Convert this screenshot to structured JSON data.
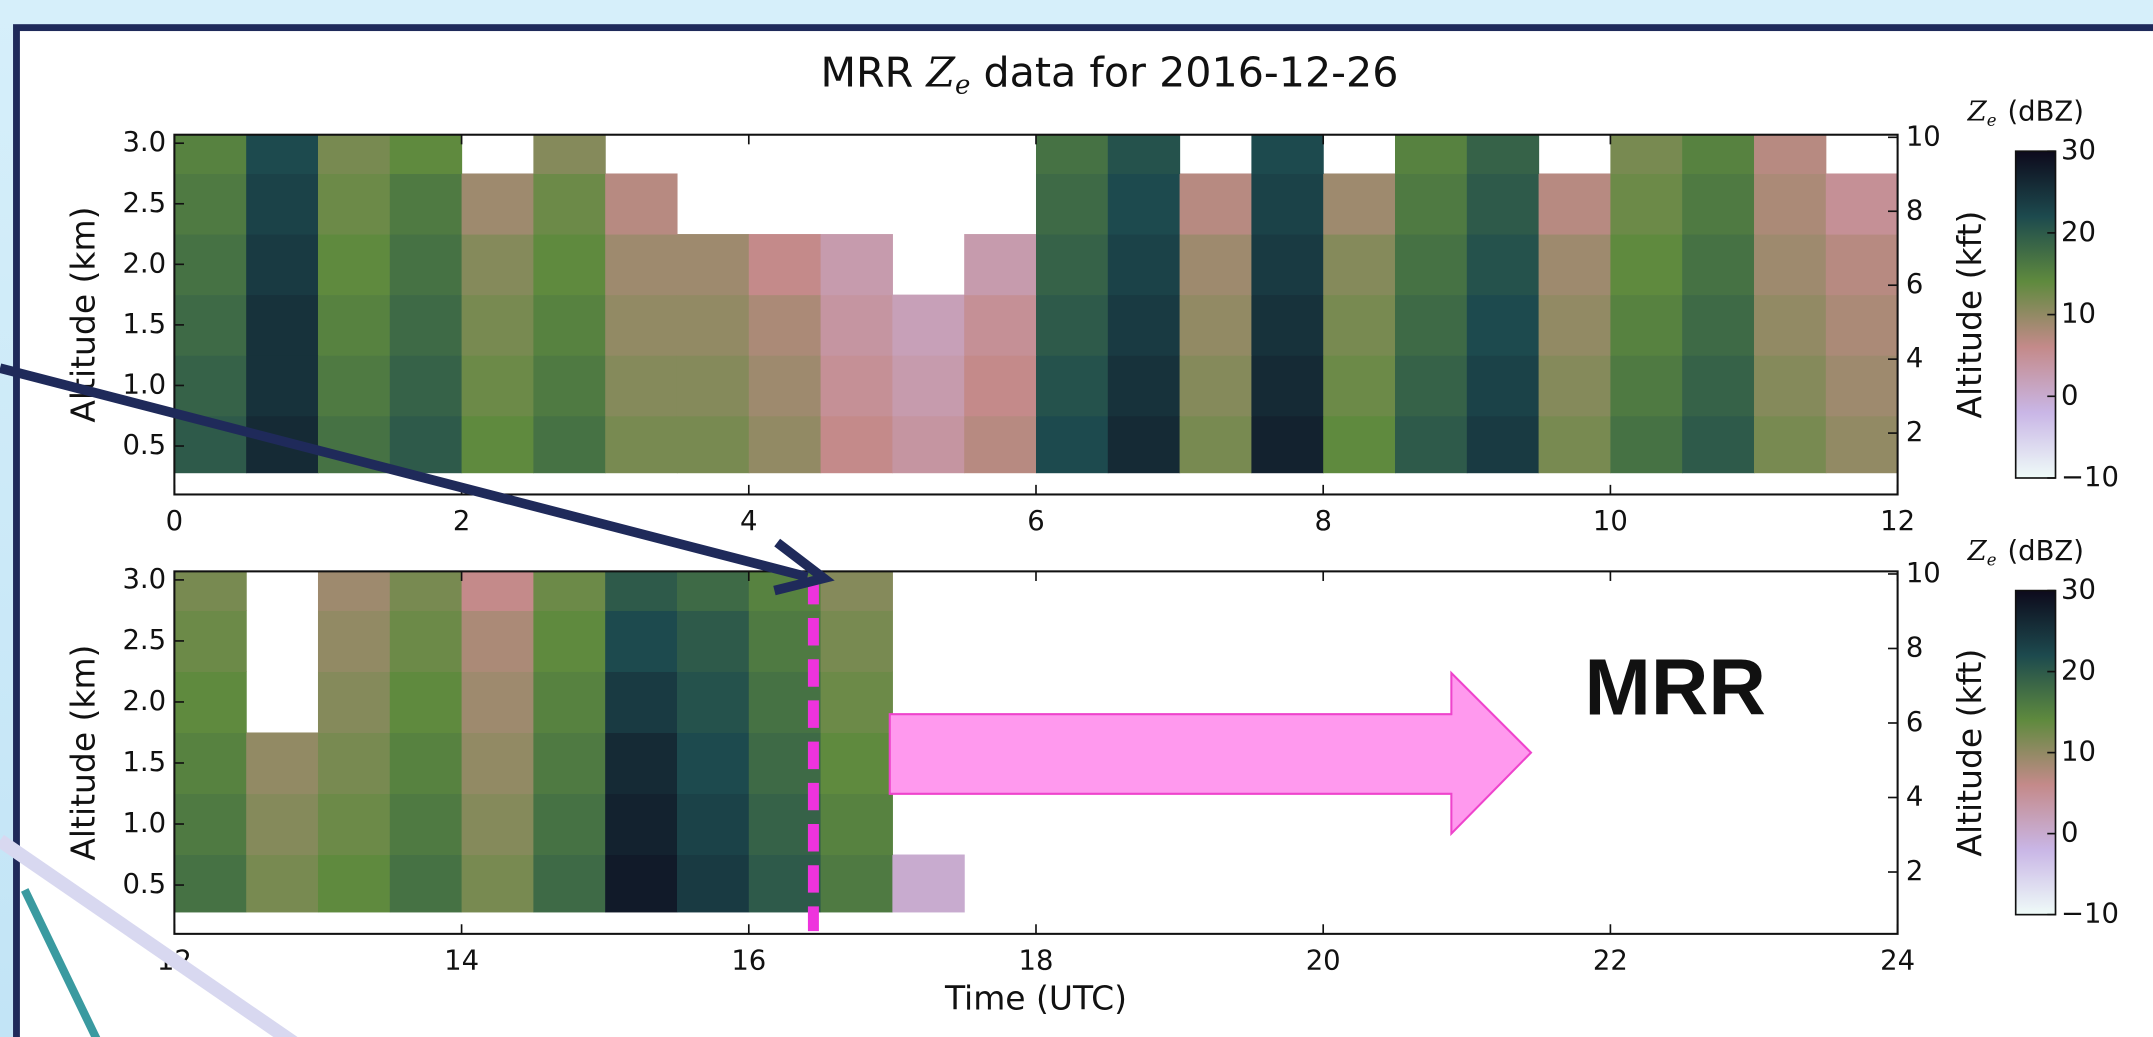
{
  "chart_data": [
    {
      "type": "heatmap",
      "title": {
        "prefix": "MRR",
        "symbol": "Z",
        "subscript": "e",
        "suffix": "data for 2016-12-26"
      },
      "ylabel": "Altitude (km)",
      "y2label": "Altitude (kft)",
      "xlim": [
        0,
        12
      ],
      "xticks": [
        0,
        2,
        4,
        6,
        8,
        10,
        12
      ],
      "ylim": [
        0.1,
        3.07
      ],
      "yticks": [
        0.5,
        {
          "value": 1.0,
          "label": "1.0"
        },
        1.5,
        {
          "value": 2.0,
          "label": "2.0"
        },
        2.5,
        {
          "value": 3.0,
          "label": "3.0"
        }
      ],
      "y2lim": [
        0.34,
        10.07
      ],
      "y2ticks": [
        2,
        4,
        6,
        8,
        10
      ],
      "x_edges": [
        0,
        0.5,
        1,
        1.5,
        2,
        2.5,
        3,
        3.5,
        4,
        4.5,
        5,
        5.5,
        6,
        6.5,
        7,
        7.5,
        8,
        8.5,
        9,
        9.5,
        10,
        10.5,
        11,
        11.5,
        12
      ],
      "y_edges": [
        0.28,
        0.75,
        1.25,
        1.75,
        2.25,
        2.75,
        3.07
      ],
      "z": [
        [
          20,
          26,
          17,
          20,
          14,
          17,
          12,
          12,
          10,
          6,
          4,
          7,
          22,
          26,
          12,
          27,
          14,
          20,
          24,
          12,
          17,
          20,
          12,
          10
        ],
        [
          19,
          25,
          16,
          19,
          13,
          16,
          11,
          11,
          9,
          5,
          3,
          6,
          21,
          25,
          11,
          26,
          13,
          19,
          23,
          11,
          16,
          19,
          11,
          9
        ],
        [
          18,
          25,
          15,
          18,
          12,
          15,
          10,
          10,
          8,
          4,
          2,
          5,
          20,
          24,
          10,
          25,
          12,
          18,
          22,
          10,
          15,
          18,
          10,
          8
        ],
        [
          17,
          24,
          14,
          17,
          11,
          14,
          9,
          9,
          6,
          3,
          null,
          3,
          19,
          23,
          9,
          24,
          11,
          17,
          21,
          9,
          14,
          17,
          9,
          7
        ],
        [
          16,
          23,
          13,
          16,
          9,
          13,
          7,
          null,
          null,
          null,
          null,
          null,
          18,
          22,
          7,
          23,
          9,
          16,
          20,
          7,
          13,
          16,
          8,
          5
        ],
        [
          15,
          22,
          12,
          14,
          null,
          11,
          null,
          null,
          null,
          null,
          null,
          null,
          17,
          21,
          null,
          22,
          null,
          15,
          19,
          null,
          12,
          15,
          7,
          null
        ]
      ],
      "colorbar": {
        "symbol": "Z",
        "subscript": "e",
        "unit": "(dBZ)",
        "clim": [
          -10,
          30
        ],
        "ticks": [
          {
            "value": -10,
            "label": "−10"
          },
          0,
          10,
          20,
          30
        ],
        "colormap": [
          "#effbf8",
          "#c9b6e6",
          "#c48a8a",
          "#5f8a3e",
          "#1d4a4e",
          "#0d0a1c"
        ]
      }
    },
    {
      "type": "heatmap",
      "xlabel": "Time (UTC)",
      "ylabel": "Altitude (km)",
      "y2label": "Altitude (kft)",
      "xlim": [
        12,
        24
      ],
      "xticks": [
        12,
        14,
        16,
        18,
        20,
        22,
        24
      ],
      "ylim": [
        0.1,
        3.07
      ],
      "yticks": [
        0.5,
        {
          "value": 1.0,
          "label": "1.0"
        },
        1.5,
        {
          "value": 2.0,
          "label": "2.0"
        },
        2.5,
        {
          "value": 3.0,
          "label": "3.0"
        }
      ],
      "y2lim": [
        0.34,
        10.07
      ],
      "y2ticks": [
        2,
        4,
        6,
        8,
        10
      ],
      "x_edges": [
        12,
        12.5,
        13,
        13.5,
        14,
        14.5,
        15,
        15.5,
        16,
        16.5,
        17,
        17.5,
        18,
        18.5,
        19,
        19.5,
        20,
        20.5,
        21,
        21.5,
        22,
        22.5,
        23,
        23.5,
        24
      ],
      "y_edges": [
        0.28,
        0.75,
        1.25,
        1.75,
        2.25,
        2.75,
        3.07
      ],
      "z": [
        [
          17,
          12,
          14,
          17,
          12,
          18,
          28,
          24,
          20,
          16,
          0,
          null,
          null,
          null,
          null,
          null,
          null,
          null,
          null,
          null,
          null,
          null,
          null,
          null
        ],
        [
          16,
          11,
          13,
          16,
          11,
          17,
          27,
          23,
          19,
          15,
          null,
          null,
          null,
          null,
          null,
          null,
          null,
          null,
          null,
          null,
          null,
          null,
          null,
          null
        ],
        [
          15,
          10,
          12,
          15,
          10,
          16,
          26,
          22,
          18,
          14,
          null,
          null,
          null,
          null,
          null,
          null,
          null,
          null,
          null,
          null,
          null,
          null,
          null,
          null
        ],
        [
          14,
          null,
          11,
          14,
          9,
          15,
          24,
          21,
          17,
          13,
          null,
          null,
          null,
          null,
          null,
          null,
          null,
          null,
          null,
          null,
          null,
          null,
          null,
          null
        ],
        [
          13,
          null,
          10,
          13,
          8,
          14,
          22,
          20,
          16,
          12,
          null,
          null,
          null,
          null,
          null,
          null,
          null,
          null,
          null,
          null,
          null,
          null,
          null,
          null
        ],
        [
          12,
          null,
          9,
          12,
          6,
          13,
          20,
          18,
          15,
          11,
          null,
          null,
          null,
          null,
          null,
          null,
          null,
          null,
          null,
          null,
          null,
          null,
          null,
          null
        ]
      ],
      "marker_time": 16.45,
      "annotation": "MRR",
      "colorbar": {
        "symbol": "Z",
        "subscript": "e",
        "unit": "(dBZ)",
        "clim": [
          -10,
          30
        ],
        "ticks": [
          {
            "value": -10,
            "label": "−10"
          },
          0,
          10,
          20,
          30
        ],
        "colormap": [
          "#effbf8",
          "#c9b6e6",
          "#c48a8a",
          "#5f8a3e",
          "#1d4a4e",
          "#0d0a1c"
        ]
      }
    }
  ]
}
